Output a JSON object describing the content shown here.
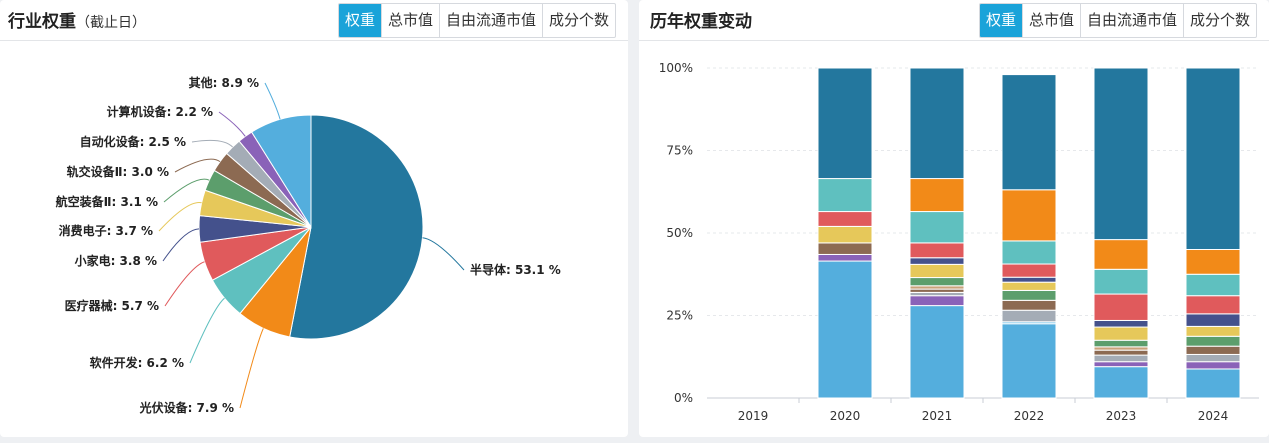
{
  "left_panel": {
    "title": "行业权重",
    "subtitle": "（截止日）",
    "tabs": [
      "权重",
      "总市值",
      "自由流通市值",
      "成分个数"
    ],
    "active_tab": 0
  },
  "right_panel": {
    "title": "历年权重变动",
    "tabs": [
      "权重",
      "总市值",
      "自由流通市值",
      "成分个数"
    ],
    "active_tab": 0
  },
  "chart_data": [
    {
      "type": "pie",
      "slices": [
        {
          "label": "半导体",
          "value": 53.1,
          "display": "半导体: 53.1 %",
          "color": "#23779e"
        },
        {
          "label": "光伏设备",
          "value": 7.9,
          "display": "光伏设备: 7.9 %",
          "color": "#f28a18"
        },
        {
          "label": "软件开发",
          "value": 6.2,
          "display": "软件开发: 6.2 %",
          "color": "#5fc0bf"
        },
        {
          "label": "医疗器械",
          "value": 5.7,
          "display": "医疗器械: 5.7 %",
          "color": "#e05a5c"
        },
        {
          "label": "小家电",
          "value": 3.8,
          "display": "小家电: 3.8 %",
          "color": "#44518c"
        },
        {
          "label": "消费电子",
          "value": 3.7,
          "display": "消费电子: 3.7 %",
          "color": "#e6c85a"
        },
        {
          "label": "航空装备Ⅱ",
          "value": 3.1,
          "display": "航空装备Ⅱ: 3.1 %",
          "color": "#5c9e6c"
        },
        {
          "label": "轨交设备Ⅱ",
          "value": 3.0,
          "display": "轨交设备Ⅱ: 3.0 %",
          "color": "#8c6a52"
        },
        {
          "label": "自动化设备",
          "value": 2.5,
          "display": "自动化设备: 2.5 %",
          "color": "#a4acb6"
        },
        {
          "label": "计算机设备",
          "value": 2.2,
          "display": "计算机设备: 2.2 %",
          "color": "#8a62b8"
        },
        {
          "label": "其他",
          "value": 8.9,
          "display": "其他: 8.9 %",
          "color": "#54aedd"
        }
      ]
    },
    {
      "type": "bar",
      "stacked": true,
      "categories": [
        "2019",
        "2020",
        "2021",
        "2022",
        "2023",
        "2024"
      ],
      "ylim": [
        0,
        100
      ],
      "yticks": [
        "0%",
        "25%",
        "50%",
        "75%",
        "100%"
      ],
      "grid": true,
      "series": [
        {
          "color": "#54aedd",
          "values": [
            0,
            41.5,
            28.0,
            22.5,
            9.5,
            8.8
          ]
        },
        {
          "color": "#7fc7ea",
          "values": [
            0,
            0,
            0,
            0.6,
            0,
            0
          ]
        },
        {
          "color": "#8a62b8",
          "values": [
            0,
            2.0,
            3.0,
            0,
            1.5,
            2.2
          ]
        },
        {
          "color": "#e6c85a",
          "values": [
            0,
            0,
            0,
            0,
            0,
            0
          ]
        },
        {
          "color": "#a4acb6",
          "values": [
            0,
            0,
            1.0,
            3.5,
            2.0,
            2.2
          ]
        },
        {
          "color": "#8c6a52",
          "values": [
            0,
            3.5,
            1.0,
            3.0,
            1.5,
            2.5
          ]
        },
        {
          "color": "#c9a27a",
          "values": [
            0,
            0,
            1.0,
            0,
            1.0,
            0
          ]
        },
        {
          "color": "#5c9e6c",
          "values": [
            0,
            0,
            2.5,
            3.0,
            2.0,
            3.0
          ]
        },
        {
          "color": "#e6c85a",
          "values": [
            0,
            5.0,
            4.0,
            2.5,
            4.0,
            3.0
          ]
        },
        {
          "color": "#44518c",
          "values": [
            0,
            0,
            2.0,
            1.5,
            2.0,
            3.8
          ]
        },
        {
          "color": "#e05a5c",
          "values": [
            0,
            4.5,
            4.5,
            4.0,
            8.0,
            5.5
          ]
        },
        {
          "color": "#5fc0bf",
          "values": [
            0,
            10.0,
            9.5,
            7.0,
            7.5,
            6.5
          ]
        },
        {
          "color": "#f28a18",
          "values": [
            0,
            0,
            10.0,
            15.5,
            9.0,
            7.5
          ]
        },
        {
          "color": "#23779e",
          "values": [
            0,
            33.5,
            33.5,
            34.9,
            52.0,
            55.0
          ]
        }
      ]
    }
  ]
}
